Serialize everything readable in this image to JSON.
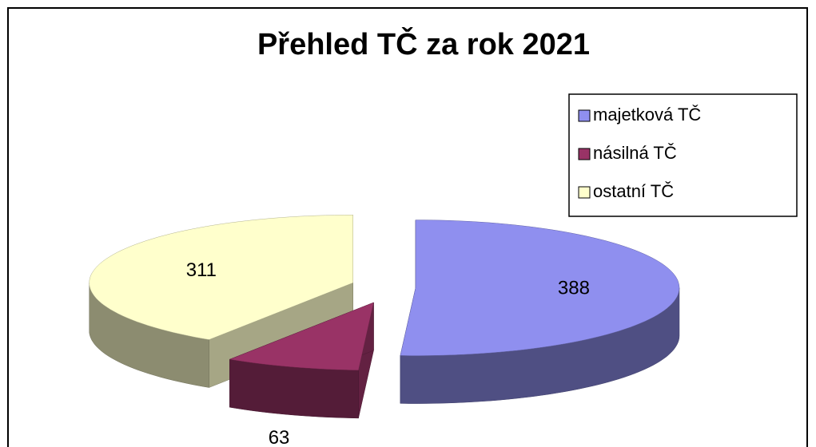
{
  "chart_data": {
    "type": "pie",
    "title": "Přehled TČ za rok 2021",
    "categories": [
      "majetková TČ",
      "násilná TČ",
      "ostatní TČ"
    ],
    "values": [
      388,
      63,
      311
    ],
    "colors": [
      "#8f8fef",
      "#993366",
      "#ffffcc"
    ],
    "legend": "right"
  }
}
